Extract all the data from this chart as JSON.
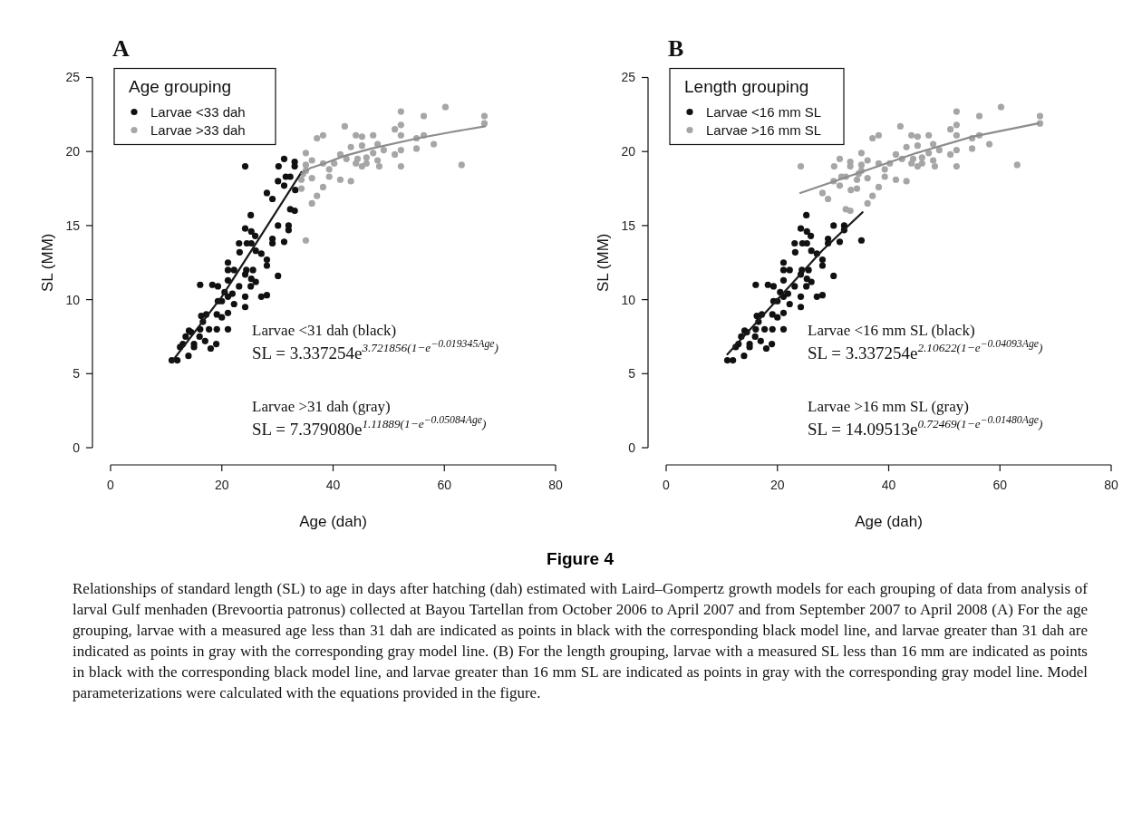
{
  "chart_data": [
    {
      "type": "scatter",
      "title": "A",
      "xlabel": "Age (dah)",
      "ylabel": "SL (MM)",
      "legend_title": "Age grouping",
      "legend": "top left",
      "xlim": [
        0,
        80
      ],
      "xticks": [
        0,
        20,
        40,
        60,
        80
      ],
      "ylim": [
        0,
        25
      ],
      "yticks": [
        0,
        5,
        10,
        15,
        20,
        25
      ],
      "annotations": [
        "Larvae <31 dah (black)",
        "SL = 3.337254e$^{3.721856(1−e}$$^{−0.019345Age}$$^{)}$",
        "Larvae >31 dah (gray)",
        "SL = 7.379080e$^{1.11889(1−e}$$^{−0.05084Age}$$^{)}$"
      ],
      "series": [
        {
          "name": "Larvae <33 dah",
          "color": "#111111",
          "type": "scatter",
          "marker": "circle",
          "x": [
            24.2,
            31.2,
            33.1,
            33.1,
            30.2,
            30.1,
            31.5,
            32.3,
            31.2,
            33.2,
            28.1,
            29.1,
            32.3,
            33.1,
            25.2,
            30.1,
            32.0,
            32.0,
            24.2,
            25.3,
            26.0,
            23.1,
            24.5,
            25.3,
            29.1,
            29.1,
            31.2,
            23.2,
            26.1,
            27.1,
            28.1,
            28.1,
            21.1,
            21.1,
            22.2,
            24.4,
            25.6,
            24.2,
            25.3,
            26.1,
            30.1,
            16.1,
            18.3,
            19.3,
            21.1,
            23.1,
            25.2,
            20.5,
            21.1,
            21.9,
            24.2,
            22.2,
            27.1,
            28.1,
            19.3,
            20.0,
            24.2,
            16.3,
            17.2,
            19.1,
            20.0,
            21.1,
            16.6,
            16.1,
            17.7,
            19.1,
            21.1,
            14.1,
            11,
            12,
            13,
            13.5,
            14,
            15,
            15,
            16,
            17,
            18,
            12.5,
            14.5,
            19
          ],
          "values": [
            19.0,
            19.5,
            19.3,
            19.0,
            19.0,
            18.0,
            18.3,
            18.3,
            17.7,
            17.4,
            17.2,
            16.8,
            16.1,
            16.0,
            15.7,
            15.0,
            15.0,
            14.7,
            14.8,
            14.6,
            14.3,
            13.8,
            13.8,
            13.8,
            14.1,
            13.8,
            13.9,
            13.2,
            13.3,
            13.1,
            12.7,
            12.3,
            12.5,
            12.0,
            12.0,
            12.0,
            12.0,
            11.7,
            11.4,
            11.2,
            11.6,
            11.0,
            11.0,
            10.9,
            11.3,
            10.9,
            10.9,
            10.5,
            10.2,
            10.4,
            10.2,
            9.7,
            10.2,
            10.3,
            9.9,
            9.9,
            9.5,
            8.9,
            9.0,
            9.0,
            8.8,
            9.1,
            8.5,
            8.0,
            8.0,
            8.0,
            8.0,
            7.9,
            5.9,
            5.9,
            7.0,
            7.5,
            6.2,
            7.0,
            6.8,
            7.5,
            7.2,
            6.7,
            6.8,
            7.8,
            7.0
          ]
        },
        {
          "name": "Larvae >33 dah",
          "color": "#a6a6a6",
          "type": "scatter",
          "marker": "circle",
          "x": [
            35.1,
            35.1,
            35.1,
            34.6,
            34.3,
            34.3,
            36.2,
            36.2,
            37.1,
            38.2,
            38.2,
            38.2,
            37.1,
            36.2,
            35.1,
            39.3,
            39.3,
            40.2,
            41.3,
            41.3,
            42.1,
            42.4,
            43.2,
            43.2,
            44.1,
            44.1,
            44.4,
            45.2,
            45.2,
            45.2,
            46.0,
            46.0,
            47.2,
            47.2,
            48.0,
            48.0,
            48.3,
            49.1,
            51.1,
            51.1,
            52.2,
            52.2,
            52.2,
            52.2,
            52.2,
            55.0,
            55.0,
            56.3,
            56.3,
            58.1,
            60.2,
            63.1,
            67.2,
            67.2
          ],
          "values": [
            19.9,
            19.1,
            18.7,
            18.5,
            18.1,
            17.5,
            18.2,
            19.4,
            20.9,
            21.1,
            19.2,
            17.6,
            17.0,
            16.5,
            14.0,
            18.8,
            18.3,
            19.2,
            19.8,
            18.1,
            21.7,
            19.5,
            20.3,
            18.0,
            21.1,
            19.2,
            19.5,
            21.0,
            20.4,
            19.0,
            19.6,
            19.2,
            21.1,
            19.9,
            20.5,
            19.4,
            19.0,
            20.1,
            21.5,
            19.8,
            22.7,
            21.8,
            21.1,
            20.1,
            19.0,
            20.9,
            20.2,
            22.4,
            21.1,
            20.5,
            23.0,
            19.1,
            22.4,
            21.9
          ]
        },
        {
          "color": "#1a1a1a",
          "type": "line",
          "x": [
            11,
            20,
            27,
            34.3
          ],
          "values": [
            5.8,
            10.2,
            14.3,
            18.6
          ]
        },
        {
          "color": "#8c8c8c",
          "type": "line",
          "x": [
            34.3,
            36,
            38.5,
            42,
            46.9,
            55.3,
            61,
            67.3
          ],
          "values": [
            18.5,
            18.9,
            19.2,
            19.7,
            20.2,
            20.9,
            21.3,
            21.7
          ]
        }
      ]
    },
    {
      "type": "scatter",
      "title": "B",
      "xlabel": "Age (dah)",
      "ylabel": "SL (MM)",
      "legend_title": "Length grouping",
      "legend": "top left",
      "xlim": [
        0,
        80
      ],
      "xticks": [
        0,
        20,
        40,
        60,
        80
      ],
      "ylim": [
        0,
        25
      ],
      "yticks": [
        0,
        5,
        10,
        15,
        20,
        25
      ],
      "annotations": [
        "Larvae <16 mm SL (black)",
        "SL = 3.337254e$^{2.10622(1−e}$$^{−0.04093Age}$$^{)}$",
        "Larvae >16 mm SL (gray)",
        "SL = 14.09513e$^{0.72469(1−e}$$^{−0.01480Age}$$^{)}$"
      ],
      "series": [
        {
          "name": "Larvae <16 mm SL",
          "color": "#111111",
          "type": "scatter",
          "marker": "circle",
          "x": [
            25.2,
            30.1,
            32.0,
            32.0,
            24.2,
            25.3,
            26.0,
            23.1,
            24.5,
            25.3,
            29.1,
            29.1,
            31.2,
            23.2,
            26.1,
            27.1,
            28.1,
            28.1,
            21.1,
            21.1,
            22.2,
            24.4,
            25.6,
            24.2,
            25.3,
            26.1,
            30.1,
            16.1,
            18.3,
            19.3,
            21.1,
            23.1,
            25.2,
            20.5,
            21.1,
            21.9,
            24.2,
            22.2,
            27.1,
            28.1,
            19.3,
            20.0,
            24.2,
            16.3,
            17.2,
            19.1,
            20.0,
            21.1,
            16.6,
            16.1,
            17.7,
            19.1,
            21.1,
            14.1,
            11,
            12,
            13,
            13.5,
            14,
            15,
            15,
            16,
            17,
            18,
            12.5,
            14.5,
            19,
            35.1
          ],
          "values": [
            15.7,
            15.0,
            15.0,
            14.7,
            14.8,
            14.6,
            14.3,
            13.8,
            13.8,
            13.8,
            14.1,
            13.8,
            13.9,
            13.2,
            13.3,
            13.1,
            12.7,
            12.3,
            12.5,
            12.0,
            12.0,
            12.0,
            12.0,
            11.7,
            11.4,
            11.2,
            11.6,
            11.0,
            11.0,
            10.9,
            11.3,
            10.9,
            10.9,
            10.5,
            10.2,
            10.4,
            10.2,
            9.7,
            10.2,
            10.3,
            9.9,
            9.9,
            9.5,
            8.9,
            9.0,
            9.0,
            8.8,
            9.1,
            8.5,
            8.0,
            8.0,
            8.0,
            8.0,
            7.9,
            5.9,
            5.9,
            7.0,
            7.5,
            6.2,
            7.0,
            6.8,
            7.5,
            7.2,
            6.7,
            6.8,
            7.8,
            7.0,
            14.0
          ]
        },
        {
          "name": "Larvae >16 mm SL",
          "color": "#a6a6a6",
          "type": "scatter",
          "marker": "circle",
          "x": [
            24.2,
            31.2,
            33.1,
            33.1,
            30.2,
            30.1,
            31.5,
            32.3,
            31.2,
            33.2,
            28.1,
            29.1,
            32.3,
            33.1,
            35.1,
            35.1,
            35.1,
            34.6,
            34.3,
            34.3,
            36.2,
            36.2,
            37.1,
            38.2,
            38.2,
            38.2,
            37.1,
            36.2,
            39.3,
            39.3,
            40.2,
            41.3,
            41.3,
            42.1,
            42.4,
            43.2,
            43.2,
            44.1,
            44.1,
            44.4,
            45.2,
            45.2,
            45.2,
            46.0,
            46.0,
            47.2,
            47.2,
            48.0,
            48.0,
            48.3,
            49.1,
            51.1,
            51.1,
            52.2,
            52.2,
            52.2,
            52.2,
            52.2,
            55.0,
            55.0,
            56.3,
            56.3,
            58.1,
            60.2,
            63.1,
            67.2,
            67.2
          ],
          "values": [
            19.0,
            19.5,
            19.3,
            19.0,
            19.0,
            18.0,
            18.3,
            18.3,
            17.7,
            17.4,
            17.2,
            16.8,
            16.1,
            16.0,
            19.9,
            19.1,
            18.7,
            18.5,
            18.1,
            17.5,
            18.2,
            19.4,
            20.9,
            21.1,
            19.2,
            17.6,
            17.0,
            16.5,
            18.8,
            18.3,
            19.2,
            19.8,
            18.1,
            21.7,
            19.5,
            20.3,
            18.0,
            21.1,
            19.2,
            19.5,
            21.0,
            20.4,
            19.0,
            19.6,
            19.2,
            21.1,
            19.9,
            20.5,
            19.4,
            19.0,
            20.1,
            21.5,
            19.8,
            22.7,
            21.8,
            21.1,
            20.1,
            19.0,
            20.9,
            20.2,
            22.4,
            21.1,
            20.5,
            23.0,
            19.1,
            22.4,
            21.9
          ]
        },
        {
          "color": "#1a1a1a",
          "type": "line",
          "x": [
            11,
            20,
            28,
            35.3
          ],
          "values": [
            6.3,
            10.0,
            13.3,
            15.9
          ]
        },
        {
          "color": "#8c8c8c",
          "type": "line",
          "x": [
            24.1,
            35,
            45,
            55,
            66.9
          ],
          "values": [
            17.2,
            18.6,
            19.9,
            21.0,
            21.9
          ]
        }
      ]
    },
    {
      "type": "other",
      "title": "Figure 4",
      "annotations": [
        "Relationships of standard length (SL) to age in days after hatching (dah) estimated with Laird–Gompertz growth models for each grouping of data from analysis of larval Gulf menhaden (Brevoortia patronus) collected at Bayou Tartellan from October 2006 to April 2007 and from September 2007 to April 2008 (A) For the age grouping, larvae with a measured age less than 31 dah are indicated as points in black with the corresponding black model line, and larvae greater than 31 dah are indicated as points in gray with the corresponding gray model line. (B) For the length grouping, larvae with a measured SL less than 16 mm are indicated as points in black with the corresponding black model line, and larvae greater than 16 mm SL are indicated as points in gray with the corresponding gray model line. Model parameterizations were calculated with the equations provided in the figure."
      ]
    }
  ]
}
